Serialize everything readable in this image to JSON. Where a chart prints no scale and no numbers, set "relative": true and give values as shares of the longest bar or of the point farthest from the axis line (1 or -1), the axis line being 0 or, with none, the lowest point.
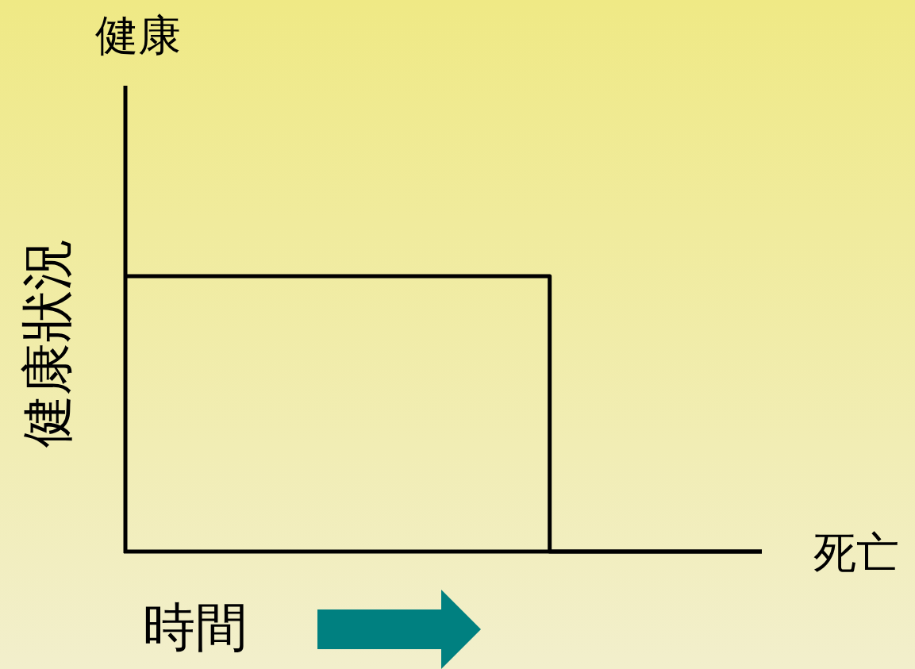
{
  "chart_data": {
    "type": "step",
    "relative": true,
    "categories": [
      null,
      null,
      null,
      null
    ],
    "values": [
      1,
      1,
      0,
      0
    ],
    "color": "#000000",
    "ylabel": "健康狀況",
    "xlabel": "時間",
    "annotations": [
      "健康",
      "死亡"
    ],
    "tick_labels": false
  }
}
